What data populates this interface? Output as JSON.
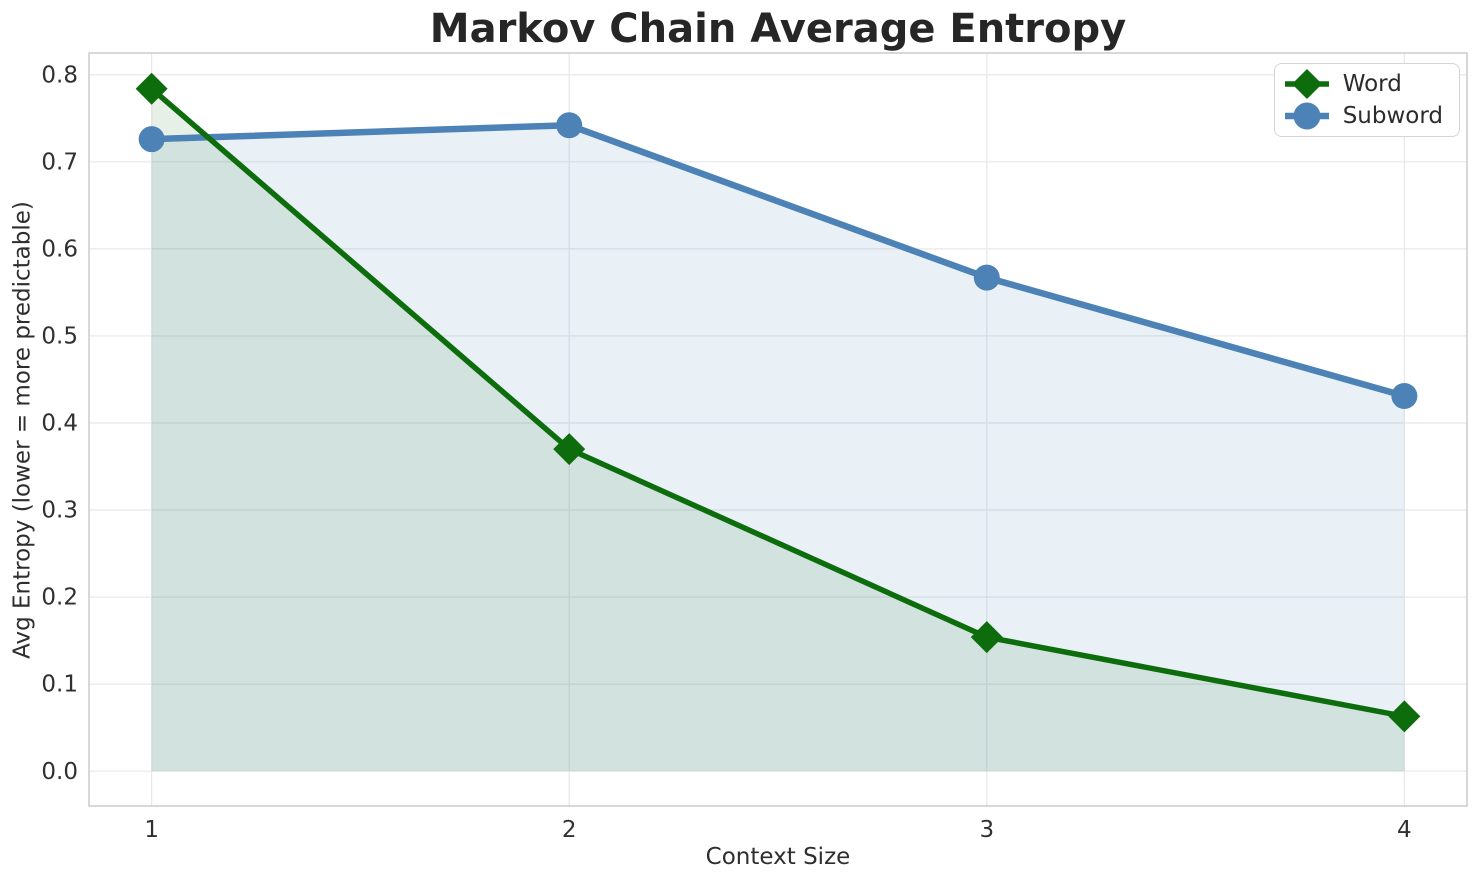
{
  "chart_data": {
    "type": "line",
    "title": "Markov Chain Average Entropy",
    "xlabel": "Context Size",
    "ylabel": "Avg Entropy (lower = more predictable)",
    "x": [
      1,
      2,
      3,
      4
    ],
    "series": [
      {
        "name": "Word",
        "color": "#0d6d0d",
        "marker": "diamond",
        "marker_size": 16,
        "line_width": 5.5,
        "area_fill": true,
        "fill_alpha": 0.1,
        "values": [
          0.784,
          0.37,
          0.154,
          0.063
        ]
      },
      {
        "name": "Subword",
        "color": "#4c82b6",
        "marker": "circle",
        "marker_size": 13,
        "line_width": 6.5,
        "area_fill": true,
        "fill_alpha": 0.12,
        "values": [
          0.726,
          0.742,
          0.567,
          0.431
        ]
      }
    ],
    "xticks": {
      "values": [
        1,
        2,
        3,
        4
      ],
      "labels": [
        "1",
        "2",
        "3",
        "4"
      ]
    },
    "yticks": {
      "values": [
        0.0,
        0.1,
        0.2,
        0.3,
        0.4,
        0.5,
        0.6,
        0.7,
        0.8
      ],
      "labels": [
        "0.0",
        "0.1",
        "0.2",
        "0.3",
        "0.4",
        "0.5",
        "0.6",
        "0.7",
        "0.8"
      ]
    },
    "xlim": [
      0.85,
      4.15
    ],
    "ylim": [
      -0.04,
      0.825
    ],
    "grid": "on",
    "area_baseline": 0,
    "legend": {
      "position": "upper right",
      "entries": [
        "Word",
        "Subword"
      ]
    },
    "styles": {
      "background": "#ffffff",
      "grid_color": "#e8e8eb",
      "spine_color": "#c8c8c8",
      "title_color": "#262626",
      "label_color": "#2e2e2e",
      "tick_color": "#303030",
      "legend_border_color": "#d4d4d4",
      "legend_text_color": "#2b2b2b"
    }
  }
}
